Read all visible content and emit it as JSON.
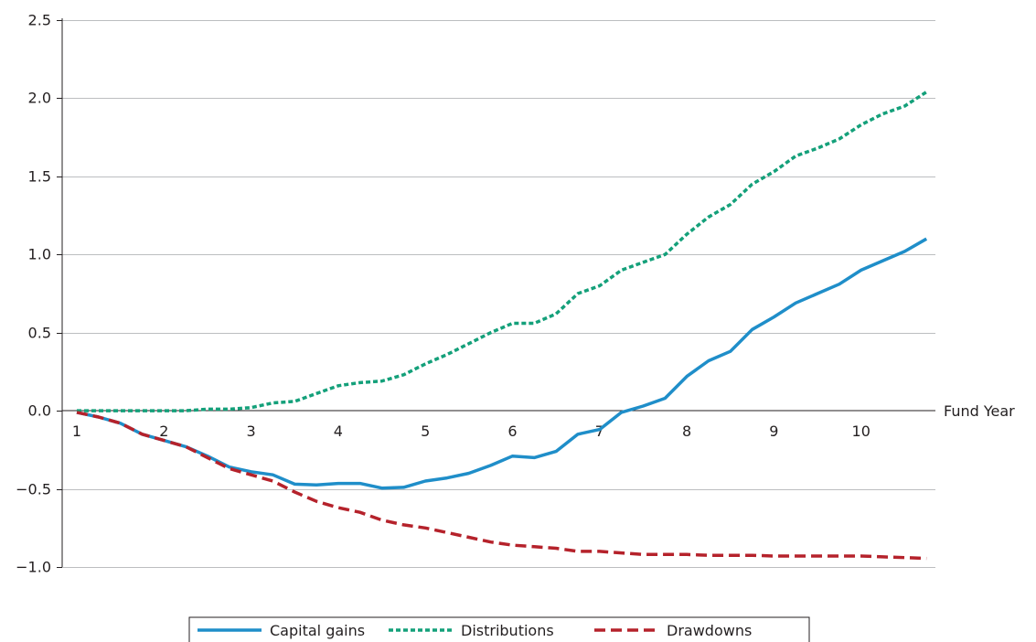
{
  "chart_data": {
    "type": "line",
    "title": "",
    "xlabel": "Fund Year",
    "ylabel": "",
    "xlim": [
      1,
      10.75
    ],
    "ylim": [
      -1.0,
      2.5
    ],
    "x_ticks": [
      "1",
      "2",
      "3",
      "4",
      "5",
      "6",
      "7",
      "8",
      "9",
      "10"
    ],
    "y_ticks": [
      "2.5",
      "2.0",
      "1.5",
      "1.0",
      "0.5",
      "0.0",
      "−0.5",
      "−1.0"
    ],
    "grid": true,
    "legend_position": "bottom-center",
    "x": [
      1,
      1.25,
      1.5,
      1.75,
      2,
      2.25,
      2.5,
      2.75,
      3,
      3.25,
      3.5,
      3.75,
      4,
      4.25,
      4.5,
      4.75,
      5,
      5.25,
      5.5,
      5.75,
      6,
      6.25,
      6.5,
      6.75,
      7,
      7.25,
      7.5,
      7.75,
      8,
      8.25,
      8.5,
      8.75,
      9,
      9.25,
      9.5,
      9.75,
      10,
      10.25,
      10.5,
      10.75
    ],
    "series": [
      {
        "name": "Capital gains",
        "color": "#1f8ec9",
        "style": "solid",
        "values": [
          -0.01,
          -0.04,
          -0.08,
          -0.15,
          -0.19,
          -0.23,
          -0.29,
          -0.36,
          -0.39,
          -0.41,
          -0.47,
          -0.475,
          -0.465,
          -0.465,
          -0.495,
          -0.49,
          -0.45,
          -0.43,
          -0.4,
          -0.35,
          -0.29,
          -0.3,
          -0.26,
          -0.15,
          -0.12,
          -0.01,
          0.03,
          0.08,
          0.22,
          0.32,
          0.38,
          0.52,
          0.6,
          0.69,
          0.75,
          0.81,
          0.9,
          0.96,
          1.02,
          1.1
        ]
      },
      {
        "name": "Distributions",
        "color": "#14a07a",
        "style": "dotted",
        "values": [
          0.0,
          0.0,
          0.0,
          0.0,
          0.0,
          0.0,
          0.01,
          0.01,
          0.02,
          0.05,
          0.06,
          0.11,
          0.16,
          0.18,
          0.19,
          0.23,
          0.3,
          0.36,
          0.43,
          0.5,
          0.56,
          0.56,
          0.62,
          0.75,
          0.8,
          0.9,
          0.95,
          1.0,
          1.13,
          1.24,
          1.32,
          1.45,
          1.53,
          1.63,
          1.68,
          1.74,
          1.83,
          1.9,
          1.95,
          2.04
        ]
      },
      {
        "name": "Drawdowns",
        "color": "#b5222b",
        "style": "dashed",
        "values": [
          -0.01,
          -0.04,
          -0.08,
          -0.15,
          -0.19,
          -0.23,
          -0.3,
          -0.37,
          -0.41,
          -0.45,
          -0.52,
          -0.58,
          -0.62,
          -0.65,
          -0.7,
          -0.73,
          -0.75,
          -0.78,
          -0.81,
          -0.84,
          -0.86,
          -0.87,
          -0.88,
          -0.9,
          -0.9,
          -0.91,
          -0.92,
          -0.92,
          -0.92,
          -0.925,
          -0.925,
          -0.925,
          -0.93,
          -0.93,
          -0.93,
          -0.93,
          -0.93,
          -0.935,
          -0.94,
          -0.945
        ]
      }
    ]
  }
}
